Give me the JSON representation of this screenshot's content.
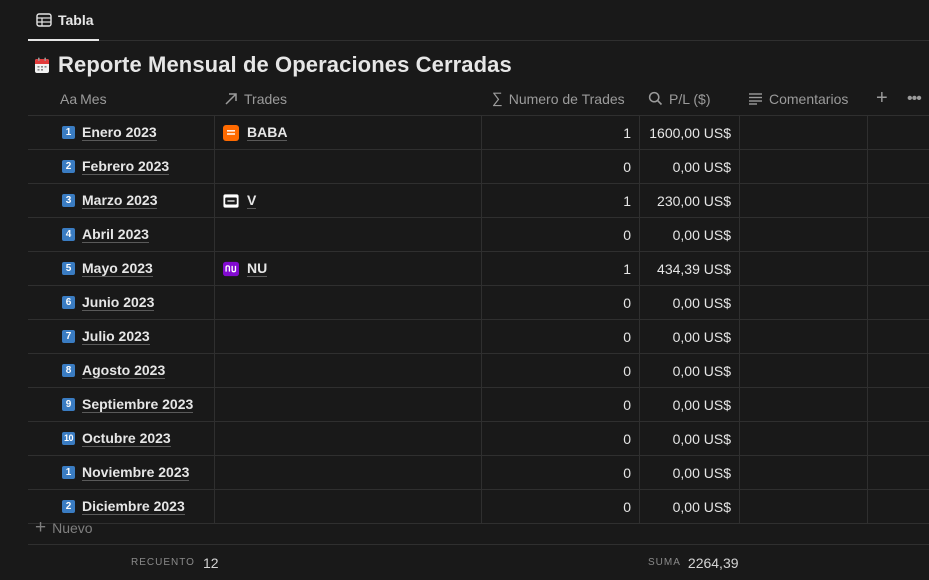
{
  "tab": {
    "label": "Tabla"
  },
  "page": {
    "title": "Reporte Mensual de Operaciones Cerradas"
  },
  "columns": {
    "mes": "Mes",
    "trades": "Trades",
    "count": "Numero de Trades",
    "pl": "P/L ($)",
    "comments": "Comentarios"
  },
  "rows": [
    {
      "badge": "1",
      "mes": "Enero 2023",
      "trade": "BABA",
      "trade_icon": "baba-logo-icon",
      "count": "1",
      "pl": "1600,00 US$"
    },
    {
      "badge": "2",
      "mes": "Febrero 2023",
      "trade": "",
      "trade_icon": "",
      "count": "0",
      "pl": "0,00 US$"
    },
    {
      "badge": "3",
      "mes": "Marzo 2023",
      "trade": "V",
      "trade_icon": "visa-logo-icon",
      "count": "1",
      "pl": "230,00 US$"
    },
    {
      "badge": "4",
      "mes": "Abril 2023",
      "trade": "",
      "trade_icon": "",
      "count": "0",
      "pl": "0,00 US$"
    },
    {
      "badge": "5",
      "mes": "Mayo 2023",
      "trade": "NU",
      "trade_icon": "nu-logo-icon",
      "count": "1",
      "pl": "434,39 US$"
    },
    {
      "badge": "6",
      "mes": "Junio 2023",
      "trade": "",
      "trade_icon": "",
      "count": "0",
      "pl": "0,00 US$"
    },
    {
      "badge": "7",
      "mes": "Julio 2023",
      "trade": "",
      "trade_icon": "",
      "count": "0",
      "pl": "0,00 US$"
    },
    {
      "badge": "8",
      "mes": "Agosto 2023",
      "trade": "",
      "trade_icon": "",
      "count": "0",
      "pl": "0,00 US$"
    },
    {
      "badge": "9",
      "mes": "Septiembre 2023",
      "trade": "",
      "trade_icon": "",
      "count": "0",
      "pl": "0,00 US$"
    },
    {
      "badge": "10",
      "mes": "Octubre 2023",
      "trade": "",
      "trade_icon": "",
      "count": "0",
      "pl": "0,00 US$"
    },
    {
      "badge": "1",
      "mes": "Noviembre 2023",
      "trade": "",
      "trade_icon": "",
      "count": "0",
      "pl": "0,00 US$"
    },
    {
      "badge": "2",
      "mes": "Diciembre 2023",
      "trade": "",
      "trade_icon": "",
      "count": "0",
      "pl": "0,00 US$"
    }
  ],
  "new_row": {
    "label": "Nuevo"
  },
  "footer": {
    "count_label": "RECUENTO",
    "count_value": "12",
    "sum_label": "SUMA",
    "sum_value": "2264,39"
  },
  "colors": {
    "background": "#191919",
    "badge": "#3a7cc2",
    "baba": "#ff6a00",
    "nu": "#820ad1"
  }
}
